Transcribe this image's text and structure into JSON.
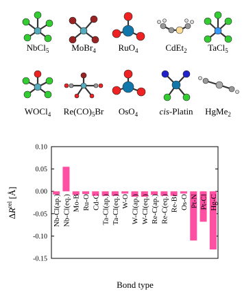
{
  "molecules": [
    {
      "label": [
        "NbCl",
        "5"
      ]
    },
    {
      "label": [
        "MoBr",
        "4"
      ]
    },
    {
      "label": [
        "RuO",
        "4"
      ]
    },
    {
      "label": [
        "CdEt",
        "2"
      ]
    },
    {
      "label": [
        "TaCl",
        "5"
      ]
    },
    {
      "label": [
        "WOCl",
        "4"
      ]
    },
    {
      "label": [
        "Re(CO)",
        "5",
        "Br"
      ]
    },
    {
      "label": [
        "OsO",
        "4"
      ]
    },
    {
      "label": [
        "cis",
        "-Platin"
      ]
    },
    {
      "label": [
        "HgMe",
        "2"
      ]
    }
  ],
  "chart_data": {
    "type": "bar",
    "ylabel": [
      "Δ",
      "R",
      "rel",
      " [Å]"
    ],
    "xlabel": "Bond type",
    "categories": [
      "Nb-Cl(ap.)",
      "Nb-Cl(eq.)",
      "Mo-B",
      "Ru-O",
      "Cd-C",
      "Ta-Cl(ap.)",
      "Ta-Cl(eq.)",
      "W-O",
      "W-Cl(ap.)",
      "W-Cl(eq.)",
      "Re-C(ap.)",
      "Re-C(eq.)",
      "Re-Br",
      "Os-O",
      "Pt-N",
      "Pt-Cl",
      "Hg-C"
    ],
    "values": [
      -0.007,
      0.055,
      -0.008,
      -0.006,
      -0.01,
      -0.01,
      -0.01,
      -0.005,
      -0.012,
      -0.012,
      -0.008,
      -0.01,
      -0.01,
      -0.005,
      -0.11,
      -0.068,
      -0.13
    ],
    "color": "#ff4fa3",
    "ylim": [
      -0.15,
      0.1
    ],
    "yticks": [
      {
        "value": -0.15,
        "label": "-0.15"
      },
      {
        "value": -0.1,
        "label": "-0.10"
      },
      {
        "value": -0.05,
        "label": "-0.05"
      },
      {
        "value": 0,
        "label": "0.00"
      },
      {
        "value": 0.05,
        "label": "0.05"
      },
      {
        "value": 0.1,
        "label": "0.10"
      }
    ]
  }
}
